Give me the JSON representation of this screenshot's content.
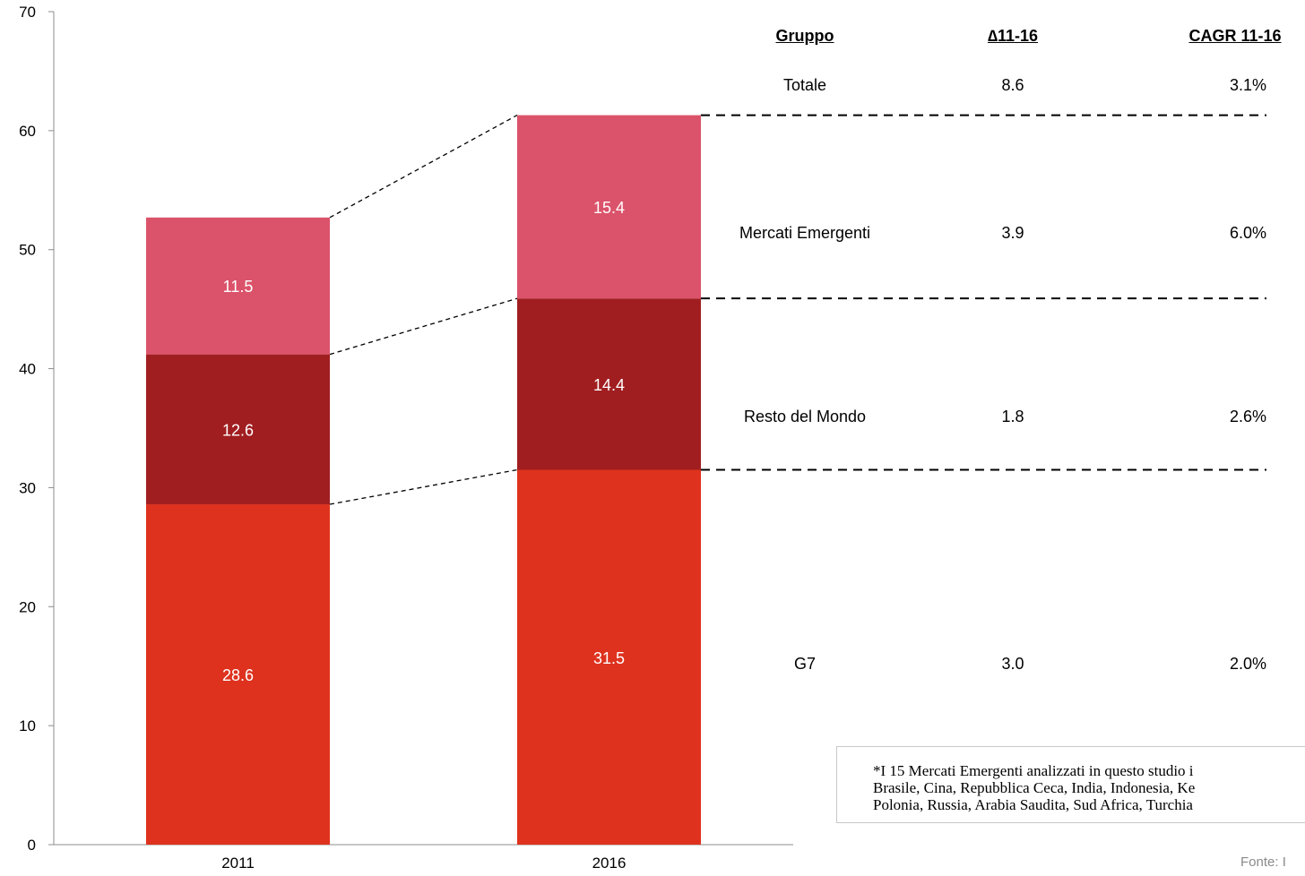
{
  "chart_data": {
    "type": "bar",
    "stacked": true,
    "categories": [
      "2011",
      "2016"
    ],
    "series": [
      {
        "name": "G7",
        "values": [
          28.6,
          31.5
        ],
        "color": "#de321e"
      },
      {
        "name": "Resto del Mondo",
        "values": [
          12.6,
          14.4
        ],
        "color": "#a11e20"
      },
      {
        "name": "Mercati Emergenti",
        "values": [
          11.5,
          15.4
        ],
        "color": "#db536a"
      }
    ],
    "ylim": [
      0,
      70
    ],
    "yticks": [
      0,
      10,
      20,
      30,
      40,
      50,
      60,
      70
    ],
    "grid": false,
    "xlabel": "",
    "ylabel": "",
    "title": ""
  },
  "table": {
    "headers": [
      "Gruppo",
      "∆11-16",
      "CAGR 11-16"
    ],
    "rows": [
      {
        "group": "Totale",
        "delta": "8.6",
        "cagr": "3.1%"
      },
      {
        "group": "Mercati Emergenti",
        "delta": "3.9",
        "cagr": "6.0%"
      },
      {
        "group": "Resto del Mondo",
        "delta": "1.8",
        "cagr": "2.6%"
      },
      {
        "group": "G7",
        "delta": "3.0",
        "cagr": "2.0%"
      }
    ]
  },
  "footnote": {
    "lines": [
      "*I 15 Mercati Emergenti analizzati in questo studio i",
      "Brasile, Cina, Repubblica Ceca, India, Indonesia, Ke",
      "Polonia, Russia, Arabia Saudita, Sud Africa, Turchia"
    ]
  },
  "source": "Fonte: I"
}
